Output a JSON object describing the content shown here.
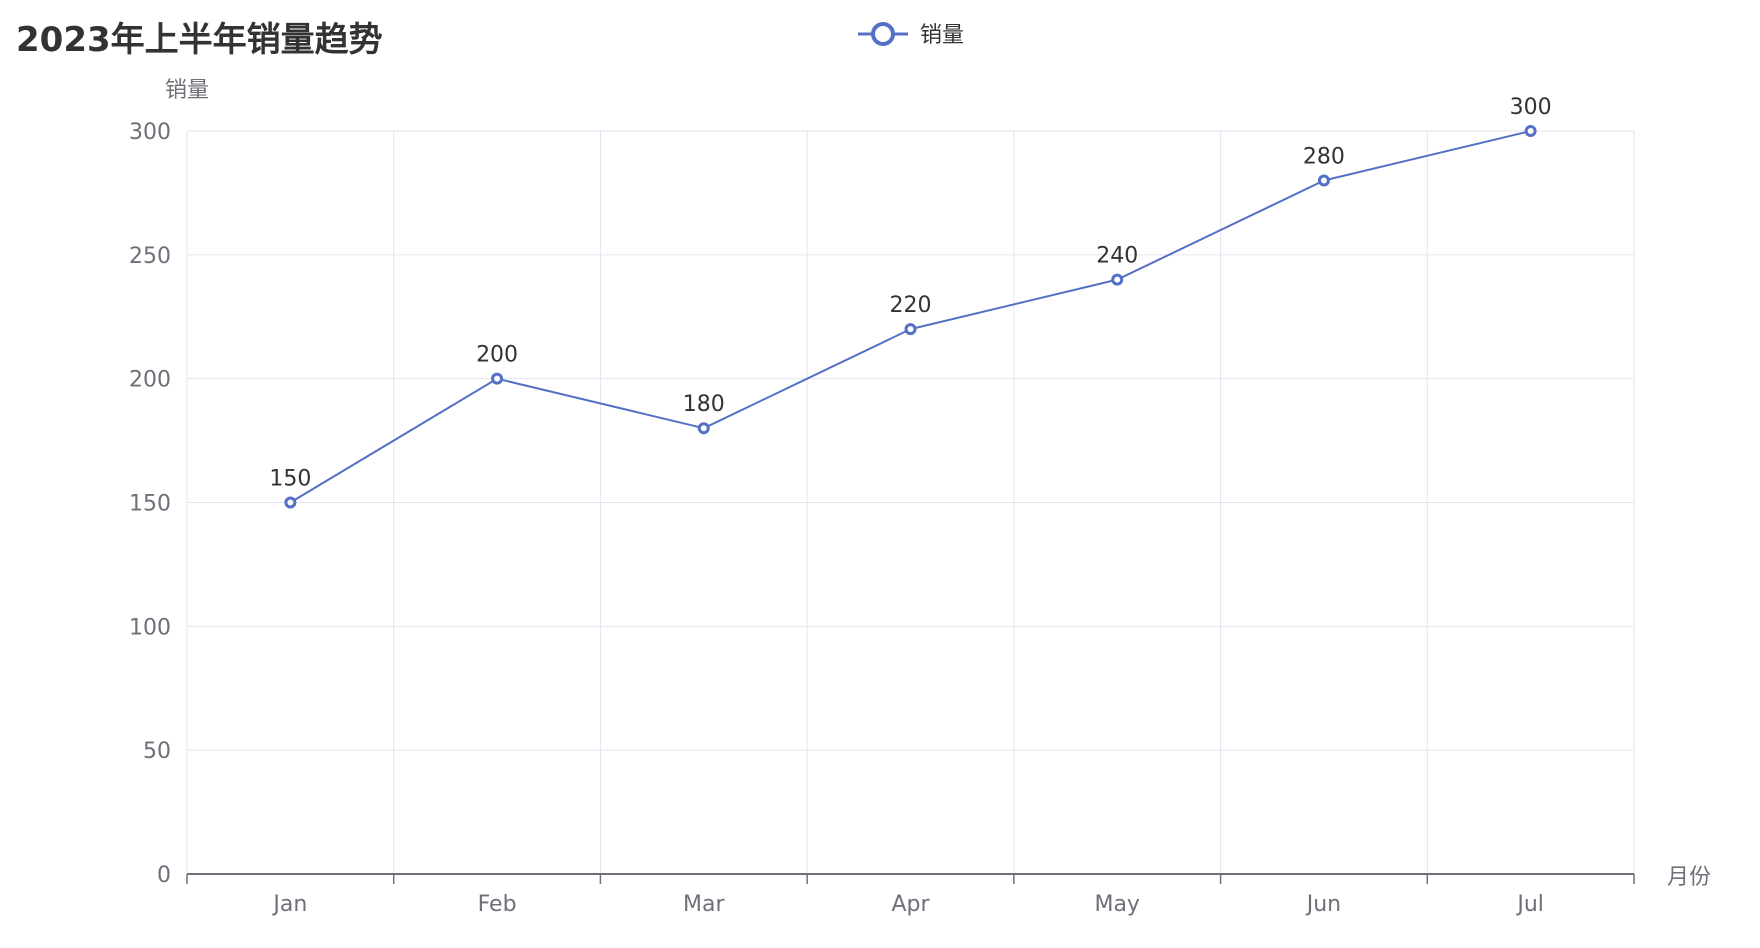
{
  "chart_data": {
    "type": "line",
    "title": "2023年上半年销量趋势",
    "xlabel": "月份",
    "ylabel": "销量",
    "categories": [
      "Jan",
      "Feb",
      "Mar",
      "Apr",
      "May",
      "Jun",
      "Jul"
    ],
    "series": [
      {
        "name": "销量",
        "values": [
          150,
          200,
          180,
          220,
          240,
          280,
          300
        ]
      }
    ],
    "ylim": [
      0,
      300
    ],
    "yticks": [
      0,
      50,
      100,
      150,
      200,
      250,
      300
    ],
    "grid": true,
    "legend": "top-center",
    "data_labels": true,
    "colors": {
      "series": "#5470c6",
      "grid": "#e0e6f1",
      "axis": "#6e7079",
      "title": "#333333"
    }
  }
}
